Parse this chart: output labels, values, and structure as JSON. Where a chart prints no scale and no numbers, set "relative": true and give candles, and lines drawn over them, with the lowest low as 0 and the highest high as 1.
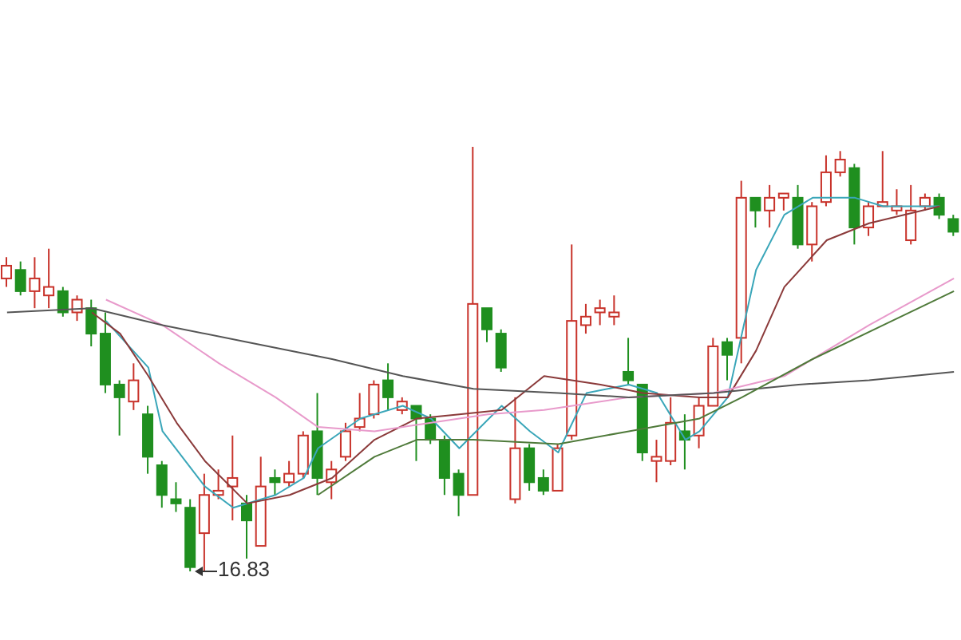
{
  "chart_data": {
    "type": "candlestick",
    "relative": true,
    "categories": [
      null,
      null,
      null,
      null,
      null,
      null,
      null,
      null,
      null,
      null,
      null,
      null,
      null,
      null,
      null,
      null,
      null,
      null,
      null,
      null,
      null,
      null,
      null,
      null,
      null,
      null,
      null,
      null,
      null,
      null,
      null,
      null,
      null,
      null,
      null,
      null,
      null,
      null,
      null,
      null,
      null,
      null,
      null,
      null,
      null,
      null,
      null,
      null,
      null,
      null,
      null,
      null,
      null,
      null,
      null,
      null,
      null,
      null,
      null,
      null,
      null,
      null,
      null,
      null,
      null,
      null,
      null,
      null
    ],
    "ohlc": [
      [
        0.69,
        0.74,
        0.67,
        0.72
      ],
      [
        0.71,
        0.73,
        0.65,
        0.66
      ],
      [
        0.66,
        0.74,
        0.62,
        0.69
      ],
      [
        0.65,
        0.76,
        0.62,
        0.67
      ],
      [
        0.66,
        0.67,
        0.6,
        0.61
      ],
      [
        0.61,
        0.65,
        0.59,
        0.64
      ],
      [
        0.62,
        0.64,
        0.53,
        0.56
      ],
      [
        0.56,
        0.61,
        0.42,
        0.44
      ],
      [
        0.44,
        0.45,
        0.32,
        0.41
      ],
      [
        0.4,
        0.49,
        0.38,
        0.45
      ],
      [
        0.37,
        0.39,
        0.23,
        0.27
      ],
      [
        0.25,
        0.26,
        0.15,
        0.18
      ],
      [
        0.17,
        0.21,
        0.14,
        0.16
      ],
      [
        0.15,
        0.17,
        0,
        0.01
      ],
      [
        0.09,
        0.23,
        0.0,
        0.18
      ],
      [
        0.18,
        0.24,
        0.17,
        0.19
      ],
      [
        0.2,
        0.32,
        0.12,
        0.22
      ],
      [
        0.16,
        0.18,
        0.03,
        0.12
      ],
      [
        0.06,
        0.27,
        0.06,
        0.2
      ],
      [
        0.22,
        0.24,
        0.18,
        0.21
      ],
      [
        0.21,
        0.26,
        0.2,
        0.23
      ],
      [
        0.23,
        0.33,
        0.22,
        0.32
      ],
      [
        0.33,
        0.42,
        0.18,
        0.22
      ],
      [
        0.21,
        0.26,
        0.17,
        0.24
      ],
      [
        0.27,
        0.35,
        0.26,
        0.33
      ],
      [
        0.34,
        0.42,
        0.33,
        0.36
      ],
      [
        0.37,
        0.45,
        0.36,
        0.44
      ],
      [
        0.45,
        0.49,
        0.38,
        0.41
      ],
      [
        0.38,
        0.41,
        0.37,
        0.4
      ],
      [
        0.39,
        0.39,
        0.26,
        0.36
      ],
      [
        0.36,
        0.37,
        0.3,
        0.31
      ],
      [
        0.31,
        0.32,
        0.18,
        0.22
      ],
      [
        0.23,
        0.24,
        0.13,
        0.18
      ],
      [
        0.18,
        1,
        0.18,
        0.63
      ],
      [
        0.62,
        0.62,
        0.54,
        0.57
      ],
      [
        0.56,
        0.57,
        0.47,
        0.48
      ],
      [
        0.17,
        0.41,
        0.16,
        0.29
      ],
      [
        0.29,
        0.3,
        0.19,
        0.21
      ],
      [
        0.22,
        0.24,
        0.18,
        0.19
      ],
      [
        0.19,
        0.3,
        0.19,
        0.29
      ],
      [
        0.32,
        0.77,
        0.31,
        0.59
      ],
      [
        0.58,
        0.63,
        0.56,
        0.6
      ],
      [
        0.61,
        0.64,
        0.58,
        0.62
      ],
      [
        0.6,
        0.65,
        0.58,
        0.61
      ],
      [
        0.47,
        0.55,
        0.44,
        0.45
      ],
      [
        0.44,
        0.44,
        0.26,
        0.28
      ],
      [
        0.26,
        0.31,
        0.21,
        0.27
      ],
      [
        0.26,
        0.41,
        0.25,
        0.35
      ],
      [
        0.33,
        0.37,
        0.24,
        0.31
      ],
      [
        0.32,
        0.41,
        0.29,
        0.39
      ],
      [
        0.39,
        0.55,
        0.39,
        0.53
      ],
      [
        0.54,
        0.55,
        0.45,
        0.51
      ],
      [
        0.55,
        0.92,
        0.49,
        0.88
      ],
      [
        0.88,
        0.88,
        0.81,
        0.85
      ],
      [
        0.85,
        0.91,
        0.81,
        0.88
      ],
      [
        0.88,
        0.89,
        0.85,
        0.89
      ],
      [
        0.88,
        0.91,
        0.76,
        0.77
      ],
      [
        0.77,
        0.87,
        0.73,
        0.86
      ],
      [
        0.87,
        0.98,
        0.86,
        0.94
      ],
      [
        0.94,
        0.99,
        0.93,
        0.97
      ],
      [
        0.95,
        0.96,
        0.77,
        0.81
      ],
      [
        0.81,
        0.87,
        0.79,
        0.86
      ],
      [
        0.86,
        0.99,
        0.86,
        0.87
      ],
      [
        0.85,
        0.9,
        0.84,
        0.86
      ],
      [
        0.78,
        0.91,
        0.77,
        0.85
      ],
      [
        0.86,
        0.89,
        0.85,
        0.88
      ],
      [
        0.88,
        0.89,
        0.83,
        0.84
      ],
      [
        0.83,
        0.84,
        0.79,
        0.8
      ]
    ],
    "colors": [
      "#c8322a",
      "#1f8f1f",
      "#c8322a",
      "#c8322a",
      "#1f8f1f",
      "#c8322a",
      "#1f8f1f",
      "#1f8f1f",
      "#1f8f1f",
      "#c8322a",
      "#1f8f1f",
      "#1f8f1f",
      "#1f8f1f",
      "#1f8f1f",
      "#c8322a",
      "#c8322a",
      "#c8322a",
      "#1f8f1f",
      "#c8322a",
      "#1f8f1f",
      "#c8322a",
      "#c8322a",
      "#1f8f1f",
      "#c8322a",
      "#c8322a",
      "#c8322a",
      "#c8322a",
      "#1f8f1f",
      "#c8322a",
      "#1f8f1f",
      "#1f8f1f",
      "#1f8f1f",
      "#1f8f1f",
      "#c8322a",
      "#1f8f1f",
      "#1f8f1f",
      "#c8322a",
      "#1f8f1f",
      "#1f8f1f",
      "#c8322a",
      "#c8322a",
      "#c8322a",
      "#c8322a",
      "#c8322a",
      "#1f8f1f",
      "#1f8f1f",
      "#c8322a",
      "#c8322a",
      "#1f8f1f",
      "#c8322a",
      "#c8322a",
      "#1f8f1f",
      "#c8322a",
      "#1f8f1f",
      "#c8322a",
      "#c8322a",
      "#1f8f1f",
      "#c8322a",
      "#c8322a",
      "#c8322a",
      "#1f8f1f",
      "#c8322a",
      "#c8322a",
      "#c8322a",
      "#c8322a",
      "#c8322a",
      "#1f8f1f",
      "#1f8f1f"
    ],
    "series": [
      {
        "type": "line",
        "color": "#3aa6b9",
        "values": [
          null,
          null,
          null,
          null,
          null,
          null,
          null,
          0.59,
          null,
          null,
          0.48,
          0.33,
          null,
          null,
          0.2,
          null,
          0.15,
          null,
          null,
          0.18,
          null,
          0.22,
          0.29,
          null,
          null,
          0.36,
          null,
          null,
          0.39,
          null,
          0.36,
          null,
          0.29,
          null,
          null,
          0.39,
          null,
          0.33,
          null,
          0.28,
          null,
          0.42,
          null,
          null,
          0.44,
          null,
          0.42,
          null,
          0.31,
          0.33,
          null,
          0.41,
          null,
          0.71,
          null,
          0.84,
          null,
          0.88,
          null,
          null,
          0.88,
          null,
          0.86,
          null,
          null,
          null,
          0.86,
          null
        ]
      },
      {
        "type": "line",
        "color": "#8b3a3a",
        "values": [
          null,
          null,
          null,
          null,
          null,
          null,
          0.61,
          null,
          0.56,
          null,
          0.46,
          null,
          0.35,
          null,
          0.26,
          null,
          null,
          0.16,
          null,
          null,
          0.18,
          null,
          null,
          0.22,
          null,
          null,
          0.31,
          null,
          null,
          0.36,
          null,
          null,
          0.37,
          null,
          null,
          0.38,
          null,
          null,
          0.46,
          null,
          null,
          null,
          0.44,
          null,
          null,
          0.42,
          null,
          null,
          null,
          0.41,
          null,
          0.41,
          null,
          0.52,
          null,
          0.67,
          null,
          null,
          0.78,
          null,
          null,
          0.82,
          null,
          null,
          null,
          null,
          0.86,
          null
        ]
      },
      {
        "type": "line",
        "color": "#e89acb",
        "values": [
          null,
          null,
          null,
          null,
          null,
          null,
          null,
          0.64,
          null,
          null,
          null,
          0.58,
          null,
          null,
          null,
          0.49,
          null,
          null,
          null,
          0.41,
          null,
          null,
          0.34,
          null,
          null,
          null,
          0.33,
          null,
          null,
          null,
          0.35,
          null,
          null,
          null,
          0.37,
          null,
          null,
          null,
          0.38,
          null,
          null,
          null,
          null,
          null,
          0.41,
          null,
          null,
          null,
          null,
          null,
          0.42,
          null,
          null,
          null,
          null,
          0.46,
          null,
          null,
          null,
          null,
          null,
          0.58,
          null,
          null,
          null,
          null,
          null,
          0.69
        ]
      },
      {
        "type": "line",
        "color": "#555555",
        "values": [
          0.61,
          null,
          null,
          null,
          null,
          null,
          0.62,
          null,
          null,
          null,
          null,
          0.58,
          null,
          null,
          null,
          null,
          null,
          0.54,
          null,
          null,
          null,
          null,
          null,
          0.5,
          null,
          null,
          null,
          null,
          0.46,
          null,
          null,
          null,
          null,
          0.43,
          null,
          null,
          null,
          null,
          null,
          0.42,
          null,
          null,
          null,
          null,
          0.41,
          null,
          null,
          null,
          null,
          null,
          0.42,
          null,
          null,
          null,
          null,
          null,
          0.44,
          null,
          null,
          null,
          null,
          0.45,
          null,
          null,
          null,
          null,
          null,
          0.47
        ]
      },
      {
        "type": "line",
        "color": "#4f7a3a",
        "values": [
          null,
          null,
          null,
          null,
          null,
          null,
          null,
          null,
          null,
          null,
          null,
          null,
          null,
          null,
          null,
          null,
          null,
          null,
          null,
          null,
          null,
          null,
          0.18,
          null,
          null,
          null,
          0.27,
          null,
          null,
          0.31,
          null,
          null,
          null,
          0.31,
          null,
          null,
          null,
          null,
          null,
          0.3,
          null,
          null,
          null,
          null,
          0.33,
          null,
          null,
          null,
          null,
          0.36,
          null,
          null,
          0.41,
          null,
          null,
          null,
          null,
          0.5,
          null,
          null,
          null,
          null,
          0.58,
          null,
          null,
          null,
          null,
          0.66
        ]
      }
    ],
    "annotations": [
      "16.83"
    ]
  }
}
